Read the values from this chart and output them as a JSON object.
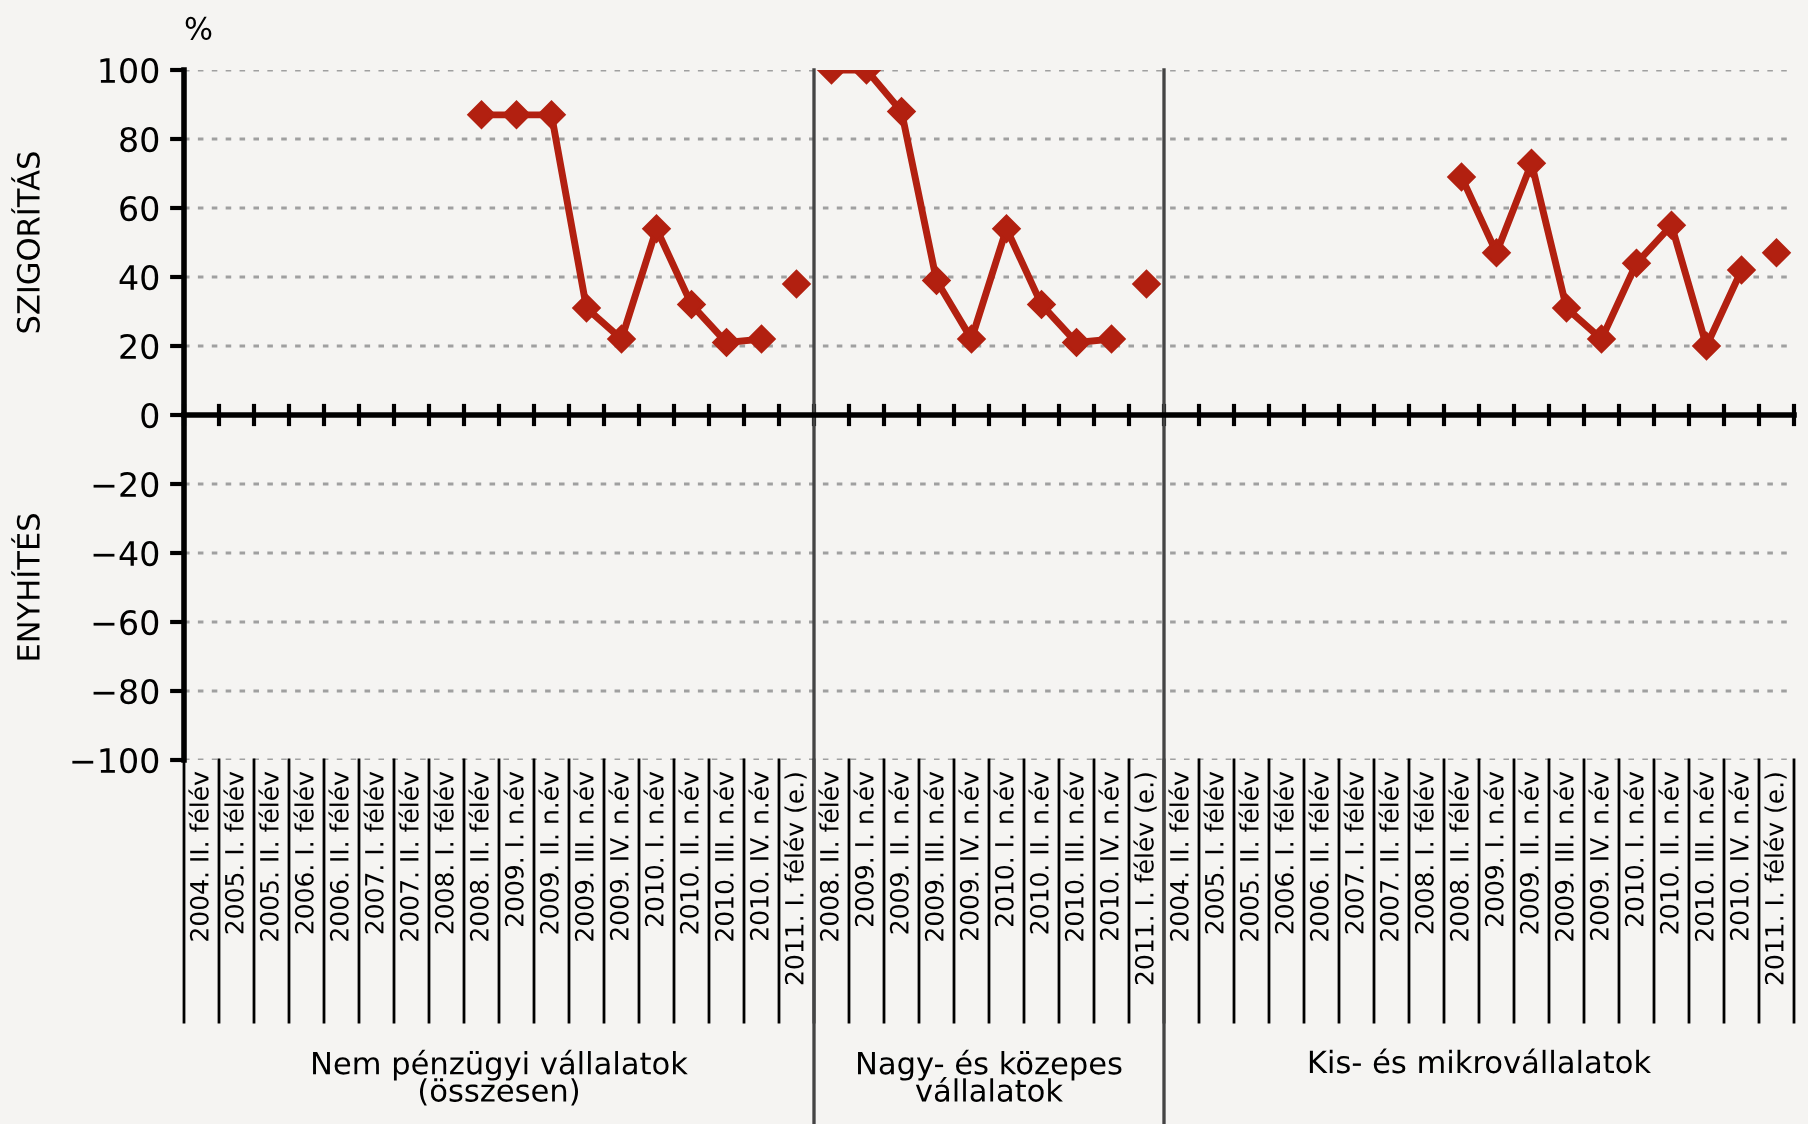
{
  "chart_data": {
    "type": "line",
    "ylabel": "%",
    "categories": [
      "2004. II. félév",
      "2005. I. félév",
      "2005. II. félév",
      "2006. I. félév",
      "2006. II. félév",
      "2007. I. félév",
      "2007. II. félév",
      "2008. I. félév",
      "2008. II. félév",
      "2009. I. n.év",
      "2009. II. n.év",
      "2009. III. n.év",
      "2009. IV. n.év",
      "2010. I. n.év",
      "2010. II. n.év",
      "2010. III. n.év",
      "2010. IV. n.év",
      "2011. I. félév (e.)",
      "2008. II. félév",
      "2009. I. n.év",
      "2009. II. n.év",
      "2009. III. n.év",
      "2009. IV. n.év",
      "2010. I. n.év",
      "2010. II. n.év",
      "2010. III. n.év",
      "2010. IV. n.év",
      "2011. I. félév (e.)",
      "2004. II. félév",
      "2005. I. félév",
      "2005. II. félév",
      "2006. I. félév",
      "2006. II. félév",
      "2007. I. félév",
      "2007. II. félév",
      "2008. I. félév",
      "2008. II. félév",
      "2009. I. n.év",
      "2009. II. n.év",
      "2009. III. n.év",
      "2009. IV. n.év",
      "2010. I. n.év",
      "2010. II. n.év",
      "2010. III. n.év",
      "2010. IV. n.év",
      "2011. I. félév (e.)"
    ],
    "series": [
      {
        "color": "#b22010",
        "values": [
          null,
          null,
          null,
          null,
          null,
          null,
          null,
          null,
          87,
          87,
          87,
          31,
          22,
          54,
          32,
          21,
          22,
          null,
          100,
          100,
          88,
          39,
          22,
          54,
          32,
          21,
          22,
          null,
          null,
          null,
          null,
          null,
          null,
          null,
          null,
          null,
          69,
          47,
          73,
          31,
          22,
          44,
          55,
          20,
          42,
          null
        ]
      },
      {
        "type": "scatter",
        "color": "#b22010",
        "values": [
          null,
          null,
          null,
          null,
          null,
          null,
          null,
          null,
          null,
          null,
          null,
          null,
          null,
          null,
          null,
          null,
          null,
          38,
          null,
          null,
          null,
          null,
          null,
          null,
          null,
          null,
          null,
          38,
          null,
          null,
          null,
          null,
          null,
          null,
          null,
          null,
          null,
          null,
          null,
          null,
          null,
          null,
          null,
          null,
          null,
          47
        ]
      }
    ],
    "ylim": [
      -100,
      100
    ],
    "yticks": [
      {
        "value": -100,
        "label": "−100"
      },
      {
        "value": -80,
        "label": "−80"
      },
      {
        "value": -60,
        "label": "−60"
      },
      {
        "value": -40,
        "label": "−40"
      },
      {
        "value": -20,
        "label": "−20"
      },
      0,
      20,
      40,
      60,
      80,
      100
    ],
    "grid": "y",
    "marker": "diamond",
    "line_style": "solid",
    "annotations": [
      "Nem pénzügyi vállalatok\n(összesen)",
      "Nagy- és közepes\nvállalatok",
      "Kis- és mikrovállalatok",
      "SZIGORÍTÁS",
      "ENYHÍTÉS"
    ]
  }
}
